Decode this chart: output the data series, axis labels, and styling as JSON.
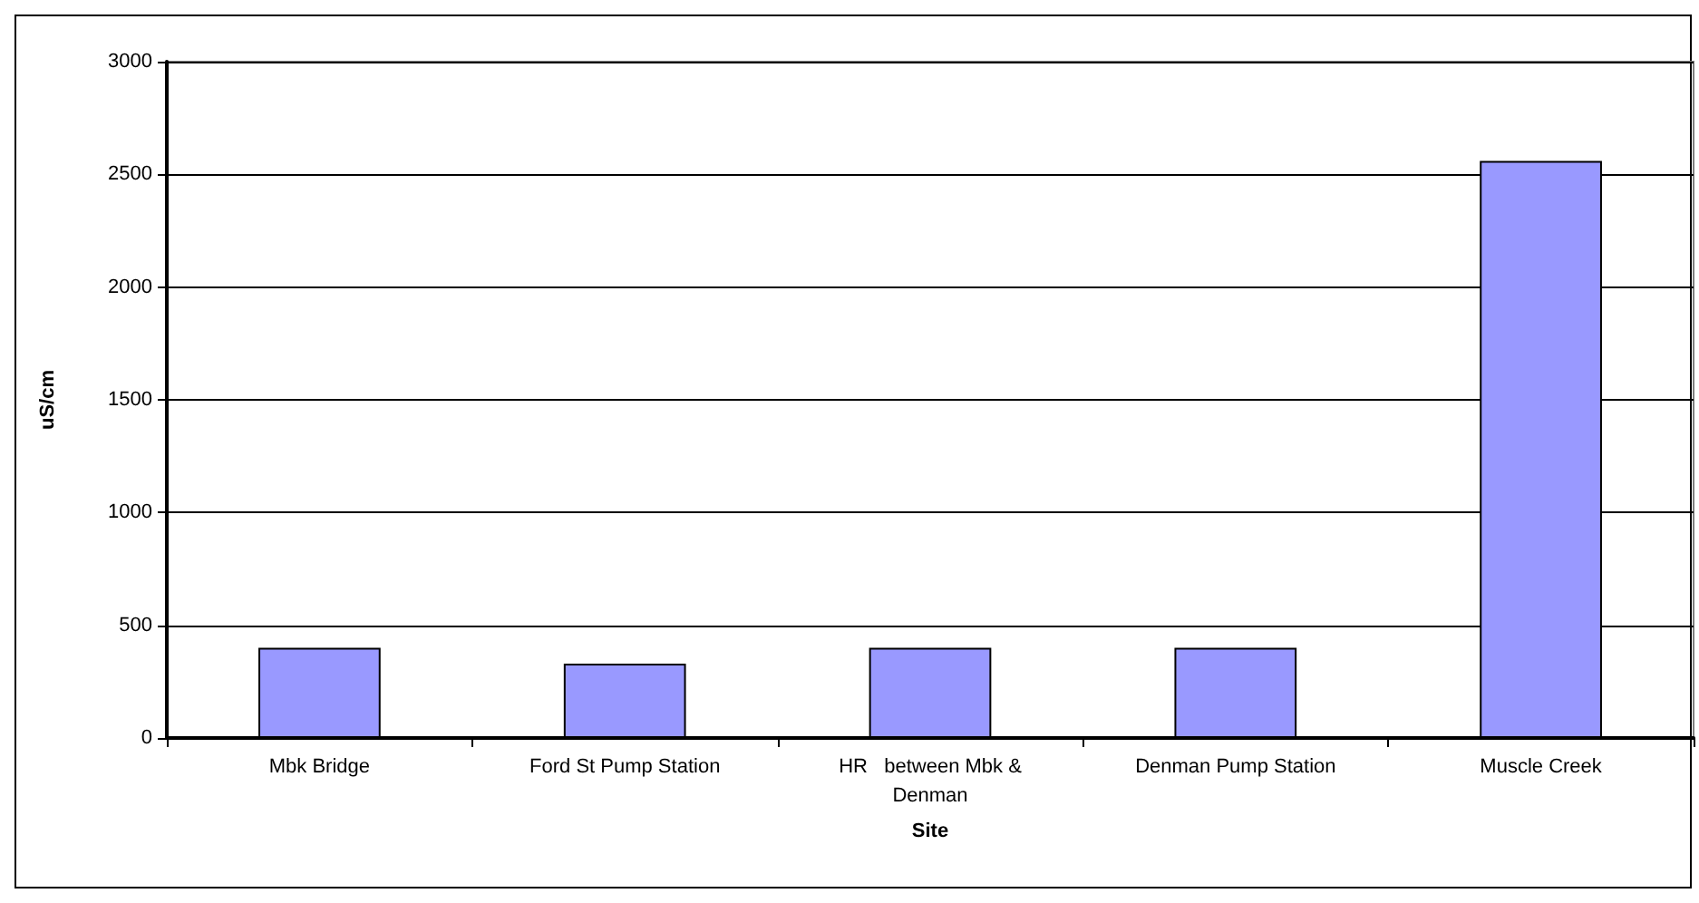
{
  "chart_data": {
    "type": "bar",
    "xlabel": "Site",
    "ylabel": "uS/cm",
    "categories": [
      "Mbk Bridge",
      "Ford St Pump Station",
      "HR   between Mbk & Denman",
      "Denman Pump Station",
      "Muscle Creek"
    ],
    "values": [
      400,
      330,
      400,
      400,
      2560
    ],
    "color": "#9999ff",
    "ylim": [
      0,
      3000
    ],
    "yticks": [
      0,
      500,
      1000,
      1500,
      2000,
      2500,
      3000
    ],
    "grid": "y"
  }
}
